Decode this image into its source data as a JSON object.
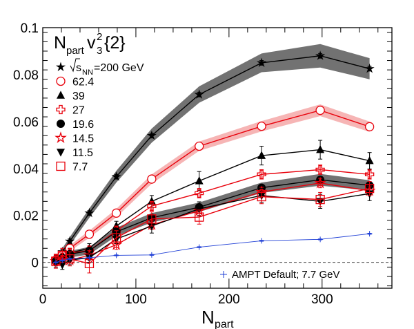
{
  "chart_data": {
    "type": "line",
    "title_main": "N",
    "title_sub": "part",
    "title_v": "v",
    "title_v_sup": "2",
    "title_v_sub": "3",
    "title_tail": "{2}",
    "xlabel_main": "N",
    "xlabel_sub": "part",
    "xlim": [
      0,
      375
    ],
    "ylim": [
      -0.011,
      0.1
    ],
    "x_ticks": [
      0,
      100,
      200,
      300
    ],
    "y_ticks": [
      0,
      0.02,
      0.04,
      0.06,
      0.08,
      0.1
    ],
    "x_tick_labels": [
      "0",
      "100",
      "200",
      "300"
    ],
    "y_tick_labels": [
      "0",
      "0.02",
      "0.04",
      "0.06",
      "0.08",
      "0.1"
    ],
    "legend_energy_prefix": "s",
    "legend_energy_sub": "NN",
    "legend_energy_suffix": "=200 GeV",
    "ampt_label": "AMPT Default; 7.7 GeV",
    "colors": {
      "black": "#000000",
      "red": "#e8000b",
      "band_dark": "#6a6a6a",
      "band_red": "#f4a3a3",
      "ampt": "#1f3fd6"
    },
    "series": [
      {
        "name": "=200 GeV",
        "energy": "200",
        "marker": "star",
        "color": "#000000",
        "x": [
          14,
          21,
          29,
          50,
          79,
          117,
          168,
          235,
          298,
          351
        ],
        "y": [
          0.0012,
          0.0045,
          0.009,
          0.021,
          0.0365,
          0.054,
          0.0715,
          0.085,
          0.088,
          0.0825
        ],
        "err": [
          0.001,
          0.001,
          0.001,
          0.001,
          0.001,
          0.001,
          0.001,
          0.001,
          0.001,
          0.001
        ],
        "band": [
          0.001,
          0.0015,
          0.0018,
          0.002,
          0.0025,
          0.003,
          0.0035,
          0.004,
          0.005,
          0.0045
        ]
      },
      {
        "name": "62.4",
        "energy": "62.4",
        "marker": "open-circle",
        "color": "#e8000b",
        "x": [
          14,
          21,
          29,
          50,
          79,
          117,
          168,
          235,
          298,
          351
        ],
        "y": [
          0.001,
          0.003,
          0.006,
          0.012,
          0.021,
          0.0355,
          0.0495,
          0.058,
          0.0648,
          0.0578
        ],
        "err": [
          0.001,
          0.001,
          0.001,
          0.001,
          0.001,
          0.001,
          0.001,
          0.001,
          0.001,
          0.001
        ],
        "band": [
          0.001,
          0.001,
          0.0012,
          0.0015,
          0.0018,
          0.002,
          0.002,
          0.0022,
          0.0025,
          0.0022
        ]
      },
      {
        "name": "39",
        "energy": "39",
        "marker": "triangle",
        "color": "#000000",
        "x": [
          14,
          21,
          29,
          50,
          79,
          117,
          168,
          235,
          298,
          351
        ],
        "y": [
          0.001,
          0.002,
          0.004,
          0.006,
          0.0155,
          0.026,
          0.0347,
          0.0455,
          0.048,
          0.0433
        ],
        "err": [
          0.002,
          0.002,
          0.002,
          0.002,
          0.002,
          0.0025,
          0.004,
          0.004,
          0.004,
          0.0035
        ]
      },
      {
        "name": "27",
        "energy": "27",
        "marker": "open-cross",
        "color": "#e8000b",
        "x": [
          14,
          21,
          29,
          50,
          79,
          117,
          168,
          235,
          298,
          351
        ],
        "y": [
          0.0015,
          0.002,
          0.004,
          0.005,
          0.0135,
          0.024,
          0.0295,
          0.0375,
          0.0395,
          0.0375
        ],
        "err": [
          0.002,
          0.002,
          0.002,
          0.002,
          0.002,
          0.002,
          0.002,
          0.002,
          0.002,
          0.002
        ]
      },
      {
        "name": "19.6",
        "energy": "19.6",
        "marker": "filled-circle",
        "color": "#000000",
        "x": [
          14,
          21,
          29,
          50,
          79,
          117,
          168,
          235,
          298,
          351
        ],
        "y": [
          0.0005,
          0.002,
          0.0035,
          0.005,
          0.013,
          0.019,
          0.0235,
          0.0318,
          0.0352,
          0.0328
        ],
        "err": [
          0.001,
          0.001,
          0.001,
          0.001,
          0.001,
          0.001,
          0.001,
          0.001,
          0.001,
          0.001
        ],
        "band": [
          0.001,
          0.0012,
          0.0014,
          0.0016,
          0.0018,
          0.002,
          0.002,
          0.0022,
          0.0025,
          0.0022
        ]
      },
      {
        "name": "14.5",
        "energy": "14.5",
        "marker": "open-star",
        "color": "#e8000b",
        "x": [
          14,
          21,
          29,
          50,
          79,
          117,
          168,
          235,
          298,
          351
        ],
        "y": [
          0.0005,
          0.001,
          0.001,
          0.003,
          0.0075,
          0.016,
          0.022,
          0.03,
          0.0338,
          0.0305
        ],
        "err": [
          0.002,
          0.002,
          0.002,
          0.002,
          0.002,
          0.002,
          0.002,
          0.002,
          0.002,
          0.002
        ]
      },
      {
        "name": "11.5",
        "energy": "11.5",
        "marker": "down-triangle",
        "color": "#000000",
        "x": [
          14,
          21,
          29,
          50,
          79,
          117,
          168,
          235,
          298,
          351
        ],
        "y": [
          0.0,
          -0.001,
          0.001,
          0.002,
          0.01,
          0.0155,
          0.0228,
          0.0285,
          0.026,
          0.0293
        ],
        "err": [
          0.002,
          0.002,
          0.002,
          0.002,
          0.002,
          0.003,
          0.003,
          0.003,
          0.003,
          0.003
        ]
      },
      {
        "name": "7.7",
        "energy": "7.7",
        "marker": "open-square",
        "color": "#e8000b",
        "x": [
          14,
          21,
          29,
          50,
          79,
          117,
          168,
          235,
          298,
          351
        ],
        "y": [
          0.0005,
          0.003,
          0.0015,
          -0.0005,
          0.0105,
          0.0185,
          0.0193,
          0.028,
          0.0268,
          0.0315
        ],
        "err": [
          0.003,
          0.003,
          0.003,
          0.004,
          0.003,
          0.003,
          0.003,
          0.003,
          0.003,
          0.003
        ]
      },
      {
        "name": "AMPT Default; 7.7 GeV",
        "energy": "AMPT",
        "marker": "plus",
        "color": "#1f3fd6",
        "x": [
          14,
          21,
          29,
          50,
          79,
          117,
          168,
          235,
          298,
          351
        ],
        "y": [
          0.0,
          0.0008,
          0.0015,
          0.002,
          0.003,
          0.0032,
          0.0065,
          0.0092,
          0.0098,
          0.0122
        ],
        "err": [
          0.0002,
          0.0002,
          0.0002,
          0.0002,
          0.0002,
          0.0002,
          0.0002,
          0.0002,
          0.0002,
          0.0002
        ]
      }
    ]
  }
}
